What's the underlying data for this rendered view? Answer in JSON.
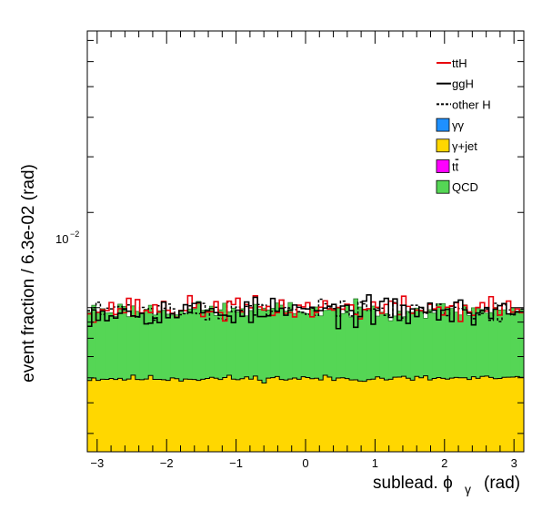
{
  "chart_data": {
    "type": "histogram-stack",
    "xlabel": "sublead. ϕ",
    "xlabel_sub": "γ",
    "xlabel_unit": "(rad)",
    "ylabel": "event fraction / 6.3e-02 (rad)",
    "xlim": [
      -3.1416,
      3.1416
    ],
    "ylim": [
      0.0035,
      0.075
    ],
    "yscale": "log",
    "ytick_label": {
      "value": 0.01,
      "base": "10",
      "exponent": "−2"
    },
    "xticks": [
      -3,
      -2,
      -1,
      0,
      1,
      2,
      3
    ],
    "xtick_labels": [
      "−3",
      "−2",
      "−1",
      "0",
      "1",
      "2",
      "3"
    ],
    "nbins": 100,
    "grid": false,
    "legend_position": "top-right",
    "legend": [
      {
        "key": "ttH",
        "label": "ttH",
        "style": "line",
        "color": "#e8000b"
      },
      {
        "key": "ggH",
        "label": "ggH",
        "style": "line",
        "color": "#000000"
      },
      {
        "key": "otherH",
        "label": "other H",
        "style": "dashed",
        "color": "#000000"
      },
      {
        "key": "gg",
        "label": "γγ",
        "style": "fill",
        "color": "#1e90ff"
      },
      {
        "key": "gjet",
        "label": "γ+jet",
        "style": "fill",
        "color": "#ffd700"
      },
      {
        "key": "tt",
        "label": "t",
        "label_bar": "t",
        "style": "fill",
        "color": "#ff00ff"
      },
      {
        "key": "qcd",
        "label": "QCD",
        "style": "fill",
        "color": "#55d655"
      }
    ],
    "series": {
      "gjet": {
        "mean": 0.00597,
        "noise": 0.00011,
        "seed": 11
      },
      "total": {
        "mean": 0.00985,
        "noise": 0.00045,
        "seed": 23
      },
      "ttH": {
        "mean": 0.00995,
        "noise": 0.00065,
        "seed": 37
      },
      "ggH": {
        "mean": 0.00975,
        "noise": 0.00075,
        "seed": 53
      },
      "otherH": {
        "mean": 0.00985,
        "noise": 0.00055,
        "seed": 71
      }
    }
  }
}
